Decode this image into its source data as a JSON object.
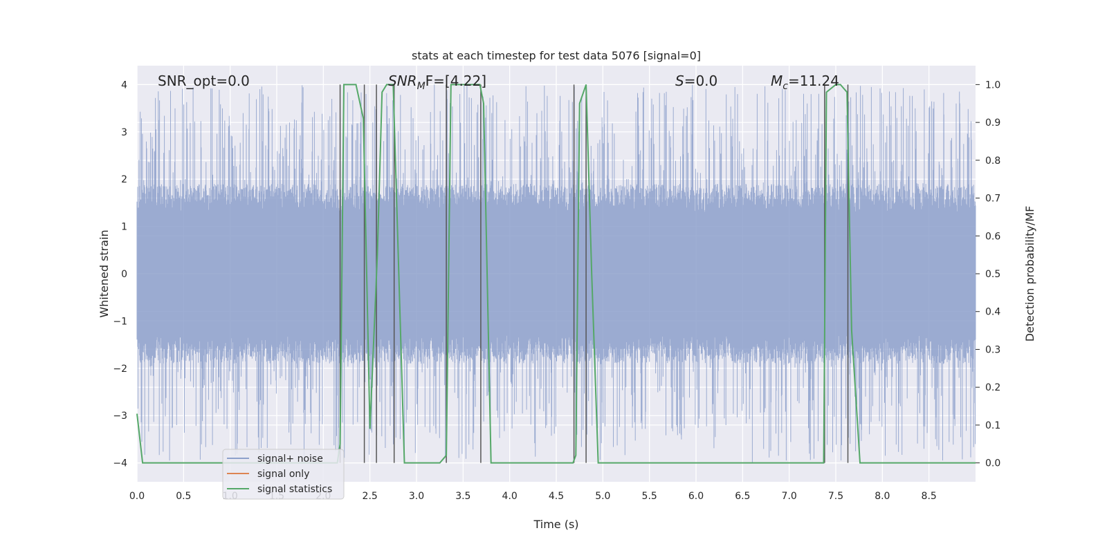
{
  "chart_data": {
    "type": "line",
    "title": "stats at each timestep for test data 5076 [signal=0]",
    "xlabel": "Time (s)",
    "ylabel": "Whitened strain",
    "y2label": "Detection probability/MF",
    "xlim": [
      0.0,
      9.0
    ],
    "ylim": [
      -4.4,
      4.4
    ],
    "y2lim": [
      -0.05,
      1.05
    ],
    "xticks": [
      0.0,
      0.5,
      1.0,
      1.5,
      2.0,
      2.5,
      3.0,
      3.5,
      4.0,
      4.5,
      5.0,
      5.5,
      6.0,
      6.5,
      7.0,
      7.5,
      8.0,
      8.5
    ],
    "xtick_labels": [
      "0.0",
      "0.5",
      "1.0",
      "1.5",
      "2.0",
      "2.5",
      "3.0",
      "3.5",
      "4.0",
      "4.5",
      "5.0",
      "5.5",
      "6.0",
      "6.5",
      "7.0",
      "7.5",
      "8.0",
      "8.5"
    ],
    "yticks": [
      4,
      3,
      2,
      1,
      0,
      -1,
      -2,
      -3,
      -4
    ],
    "ytick_labels": [
      "4",
      "3",
      "2",
      "1",
      "0",
      "−1",
      "−2",
      "−3",
      "−4"
    ],
    "y2ticks": [
      1.0,
      0.9,
      0.8,
      0.7,
      0.6,
      0.5,
      0.4,
      0.3,
      0.2,
      0.1,
      0.0
    ],
    "y2tick_labels": [
      "1.0",
      "0.9",
      "0.8",
      "0.7",
      "0.6",
      "0.5",
      "0.4",
      "0.3",
      "0.2",
      "0.1",
      "0.0"
    ],
    "grid": true,
    "legend_position": "lower-left",
    "annotations": {
      "snr_opt": "SNR_opt=0.0",
      "snr_mf_main": "SNR",
      "snr_mf_sub": "M",
      "snr_mf_rest": "F=[4.22]",
      "s_main": "S",
      "s_rest": "=0.0",
      "mc_main": "M",
      "mc_sub": "c",
      "mc_rest": "=11.24"
    },
    "series": [
      {
        "name": "signal+ noise",
        "color": "#8da0cb",
        "axis": "left",
        "description_level": "noise band, core about ±1.6, peaks up to about ±4",
        "band_core": 1.6,
        "band_peak": 4.0
      },
      {
        "name": "signal only",
        "color": "#dd8452",
        "axis": "left",
        "x": [],
        "y": []
      },
      {
        "name": "signal statistics",
        "color": "#55a868",
        "axis": "right",
        "x": [
          0.0,
          0.06,
          0.13,
          2.15,
          2.18,
          2.22,
          2.35,
          2.43,
          2.5,
          2.58,
          2.63,
          2.68,
          2.75,
          2.87,
          3.25,
          3.32,
          3.37,
          3.68,
          3.72,
          3.8,
          4.68,
          4.71,
          4.75,
          4.82,
          4.88,
          4.95,
          7.37,
          7.4,
          7.5,
          7.55,
          7.62,
          7.67,
          7.76,
          7.85,
          9.0
        ],
        "y": [
          0.13,
          0.0,
          0.0,
          0.0,
          0.05,
          1.0,
          1.0,
          0.91,
          0.09,
          0.55,
          0.98,
          1.0,
          1.0,
          0.0,
          0.0,
          0.02,
          1.0,
          1.0,
          0.95,
          0.0,
          0.0,
          0.02,
          0.95,
          1.0,
          0.5,
          0.0,
          0.0,
          0.98,
          1.0,
          1.0,
          0.98,
          0.35,
          0.0,
          0.0,
          0.0
        ]
      }
    ],
    "vertical_markers": {
      "color": "#555555",
      "x": [
        2.18,
        2.44,
        2.57,
        2.76,
        3.32,
        3.69,
        4.69,
        4.82,
        7.38,
        7.63
      ]
    }
  }
}
